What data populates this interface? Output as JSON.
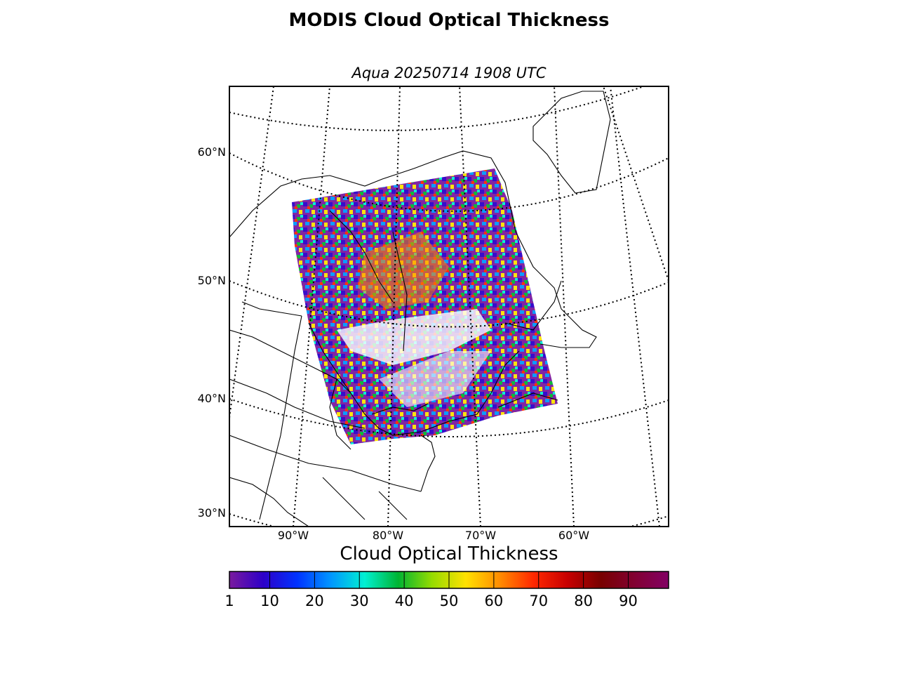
{
  "title": "MODIS Cloud Optical Thickness",
  "subtitle": "Aqua 20250714 1908 UTC",
  "map": {
    "lat_labels": [
      "60°N",
      "50°N",
      "40°N",
      "30°N"
    ],
    "lon_labels": [
      "90°W",
      "80°W",
      "70°W",
      "60°W"
    ]
  },
  "colorbar": {
    "label": "Cloud Optical Thickness",
    "min": 1,
    "max": 99,
    "ticks": [
      "1",
      "10",
      "20",
      "30",
      "40",
      "50",
      "60",
      "70",
      "80",
      "90"
    ],
    "tick_values": [
      1,
      10,
      20,
      30,
      40,
      50,
      60,
      70,
      80,
      90
    ],
    "colors": [
      "#7a1a9e",
      "#2d00c8",
      "#0032ff",
      "#0096ff",
      "#00f0d2",
      "#00b432",
      "#96dc00",
      "#ffe100",
      "#ff8c00",
      "#ff2800",
      "#c80000",
      "#780000",
      "#820032",
      "#820064"
    ]
  },
  "colors": {
    "gridline": "#000000",
    "coastline": "#000000"
  }
}
